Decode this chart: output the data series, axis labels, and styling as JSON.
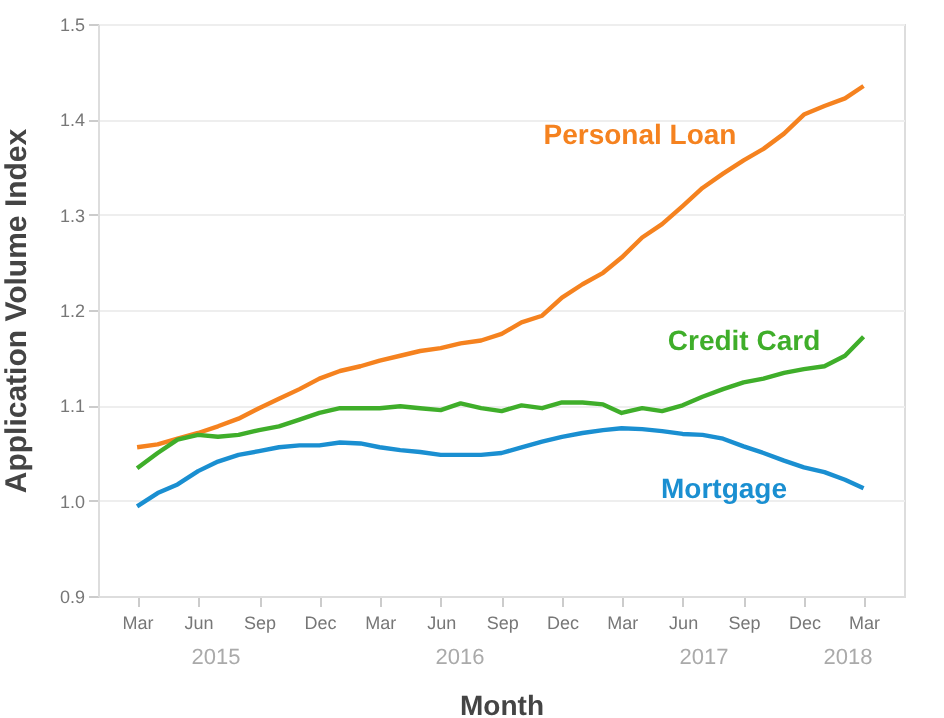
{
  "chart_data": {
    "type": "line",
    "xlabel": "Month",
    "ylabel": "Application Volume Index",
    "x": [
      "2015-03",
      "2015-04",
      "2015-05",
      "2015-06",
      "2015-07",
      "2015-08",
      "2015-09",
      "2015-10",
      "2015-11",
      "2015-12",
      "2016-01",
      "2016-02",
      "2016-03",
      "2016-04",
      "2016-05",
      "2016-06",
      "2016-07",
      "2016-08",
      "2016-09",
      "2016-10",
      "2016-11",
      "2016-12",
      "2017-01",
      "2017-02",
      "2017-03",
      "2017-04",
      "2017-05",
      "2017-06",
      "2017-07",
      "2017-08",
      "2017-09",
      "2017-10",
      "2017-11",
      "2017-12",
      "2018-01",
      "2018-02",
      "2018-03"
    ],
    "series": [
      {
        "name": "Personal Loan",
        "color": "#f5821f",
        "values": [
          1.056,
          1.059,
          1.065,
          1.071,
          1.078,
          1.086,
          1.097,
          1.107,
          1.117,
          1.128,
          1.136,
          1.141,
          1.147,
          1.152,
          1.157,
          1.16,
          1.165,
          1.168,
          1.175,
          1.187,
          1.194,
          1.213,
          1.227,
          1.239,
          1.255,
          1.276,
          1.29,
          1.309,
          1.328,
          1.343,
          1.357,
          1.369,
          1.385,
          1.405,
          1.414,
          1.422,
          1.435
        ]
      },
      {
        "name": "Credit Card",
        "color": "#3fae2a",
        "values": [
          1.034,
          1.05,
          1.064,
          1.069,
          1.067,
          1.069,
          1.074,
          1.078,
          1.085,
          1.092,
          1.097,
          1.097,
          1.097,
          1.099,
          1.097,
          1.095,
          1.102,
          1.097,
          1.094,
          1.1,
          1.097,
          1.103,
          1.103,
          1.101,
          1.092,
          1.097,
          1.094,
          1.1,
          1.109,
          1.117,
          1.124,
          1.128,
          1.134,
          1.138,
          1.141,
          1.152,
          1.172
        ]
      },
      {
        "name": "Mortgage",
        "color": "#1a8fd1",
        "values": [
          0.994,
          1.008,
          1.017,
          1.031,
          1.041,
          1.048,
          1.052,
          1.056,
          1.058,
          1.058,
          1.061,
          1.06,
          1.056,
          1.053,
          1.051,
          1.048,
          1.048,
          1.048,
          1.05,
          1.056,
          1.062,
          1.067,
          1.071,
          1.074,
          1.076,
          1.075,
          1.073,
          1.07,
          1.069,
          1.065,
          1.057,
          1.05,
          1.042,
          1.035,
          1.03,
          1.022,
          1.013
        ]
      }
    ],
    "xlim": [
      "2015-01",
      "2018-05"
    ],
    "xticks": [
      {
        "value": "2015-03",
        "label": "Mar"
      },
      {
        "value": "2015-06",
        "label": "Jun"
      },
      {
        "value": "2015-09",
        "label": "Sep"
      },
      {
        "value": "2015-12",
        "label": "Dec"
      },
      {
        "value": "2016-03",
        "label": "Mar"
      },
      {
        "value": "2016-06",
        "label": "Jun"
      },
      {
        "value": "2016-09",
        "label": "Sep"
      },
      {
        "value": "2016-12",
        "label": "Dec"
      },
      {
        "value": "2017-03",
        "label": "Mar"
      },
      {
        "value": "2017-06",
        "label": "Jun"
      },
      {
        "value": "2017-09",
        "label": "Sep"
      },
      {
        "value": "2017-12",
        "label": "Dec"
      },
      {
        "value": "2018-03",
        "label": "Mar"
      }
    ],
    "ylim": [
      0.9,
      1.5
    ],
    "yticks": [
      0.9,
      {
        "value": 1.0,
        "label": "1.0"
      },
      1.1,
      1.2,
      1.3,
      1.4,
      1.5
    ],
    "annotations": [
      "2015",
      "2016",
      "2017",
      "2018"
    ],
    "grid": "y",
    "legend": false,
    "line_style": "solid",
    "marker": "none"
  }
}
